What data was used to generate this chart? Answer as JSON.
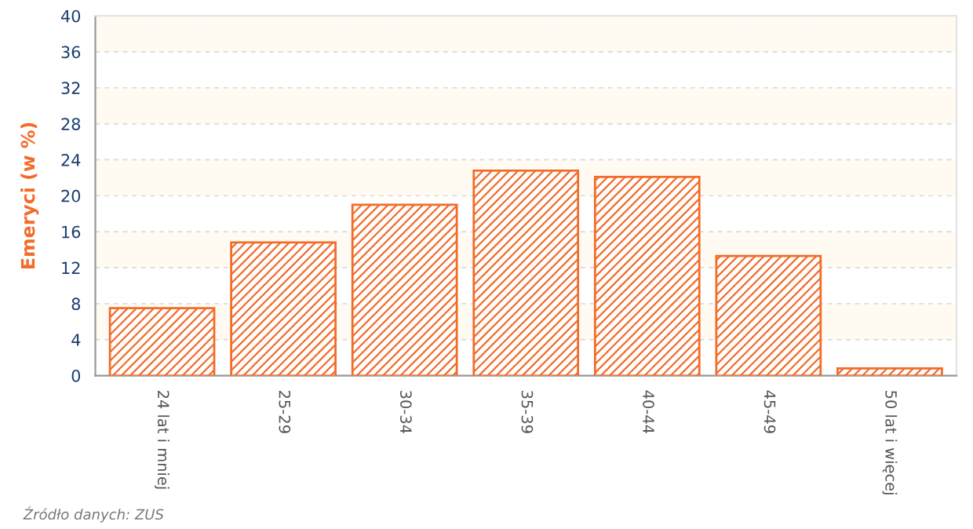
{
  "chart_data": {
    "type": "bar",
    "ylabel": "Emeryci (w %)",
    "categories": [
      "24 lat i mniej",
      "25-29",
      "30-34",
      "35-39",
      "40-44",
      "45-49",
      "50 lat i więcej"
    ],
    "series": [
      {
        "color": "#f26c2a",
        "values": [
          7.5,
          14.8,
          19.0,
          22.8,
          22.1,
          13.3,
          0.8
        ]
      }
    ],
    "ylim": [
      0,
      40
    ],
    "yticks": [
      0,
      4,
      8,
      12,
      16,
      20,
      24,
      28,
      32,
      36,
      40
    ],
    "grid": "y",
    "bands": [
      {
        "axis": "y",
        "from": 4,
        "to": 8,
        "color": "#fffbf2"
      },
      {
        "axis": "y",
        "from": 12,
        "to": 16,
        "color": "#fffbf2"
      },
      {
        "axis": "y",
        "from": 20,
        "to": 24,
        "color": "#fffbf2"
      },
      {
        "axis": "y",
        "from": 28,
        "to": 32,
        "color": "#fffbf2"
      },
      {
        "axis": "y",
        "from": 36,
        "to": 40,
        "color": "#fffbf2"
      }
    ],
    "annotations": [
      "Źródło danych: ZUS"
    ]
  }
}
